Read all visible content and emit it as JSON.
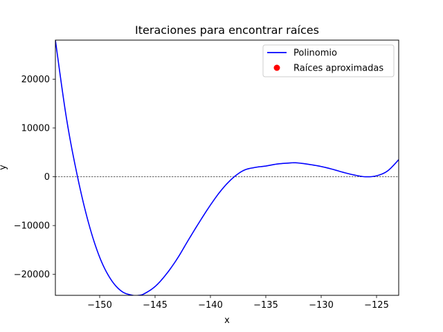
{
  "chart_data": {
    "type": "line",
    "title": "Iteraciones para encontrar raíces",
    "xlabel": "x",
    "ylabel": "y",
    "xlim": [
      -154,
      -123
    ],
    "ylim": [
      -24300,
      28000
    ],
    "x_ticks": [
      -150,
      -145,
      -140,
      -135,
      -130,
      -125
    ],
    "x_tick_labels": [
      "−150",
      "−145",
      "−140",
      "−135",
      "−130",
      "−125"
    ],
    "y_ticks": [
      -20000,
      -10000,
      0,
      10000,
      20000
    ],
    "y_tick_labels": [
      "−20000",
      "−10000",
      "0",
      "10000",
      "20000"
    ],
    "grid": false,
    "legend_position": "top-right",
    "reference_line": {
      "y": 0,
      "style": "dashed",
      "color": "#000000"
    },
    "series": [
      {
        "name": "Polinomio",
        "kind": "line",
        "color": "#0000ff",
        "x": [
          -154,
          -153,
          -152,
          -151,
          -150,
          -149,
          -148,
          -147,
          -146.5,
          -146,
          -145,
          -144,
          -143,
          -142,
          -141,
          -140,
          -139,
          -138,
          -137,
          -136,
          -135,
          -134,
          -133,
          -132.2,
          -131,
          -130,
          -129,
          -128,
          -127,
          -126,
          -125,
          -124,
          -123
        ],
        "y": [
          28000,
          12000,
          0,
          -9500,
          -16500,
          -21000,
          -23500,
          -24300,
          -24300,
          -24000,
          -22500,
          -20000,
          -16800,
          -13000,
          -9300,
          -5800,
          -2700,
          -300,
          1300,
          1900,
          2200,
          2600,
          2800,
          2850,
          2500,
          2100,
          1550,
          900,
          350,
          0,
          200,
          1200,
          3500
        ]
      },
      {
        "name": "Raíces aproximadas",
        "kind": "scatter",
        "color": "#ff0000",
        "x": [],
        "y": []
      }
    ]
  }
}
